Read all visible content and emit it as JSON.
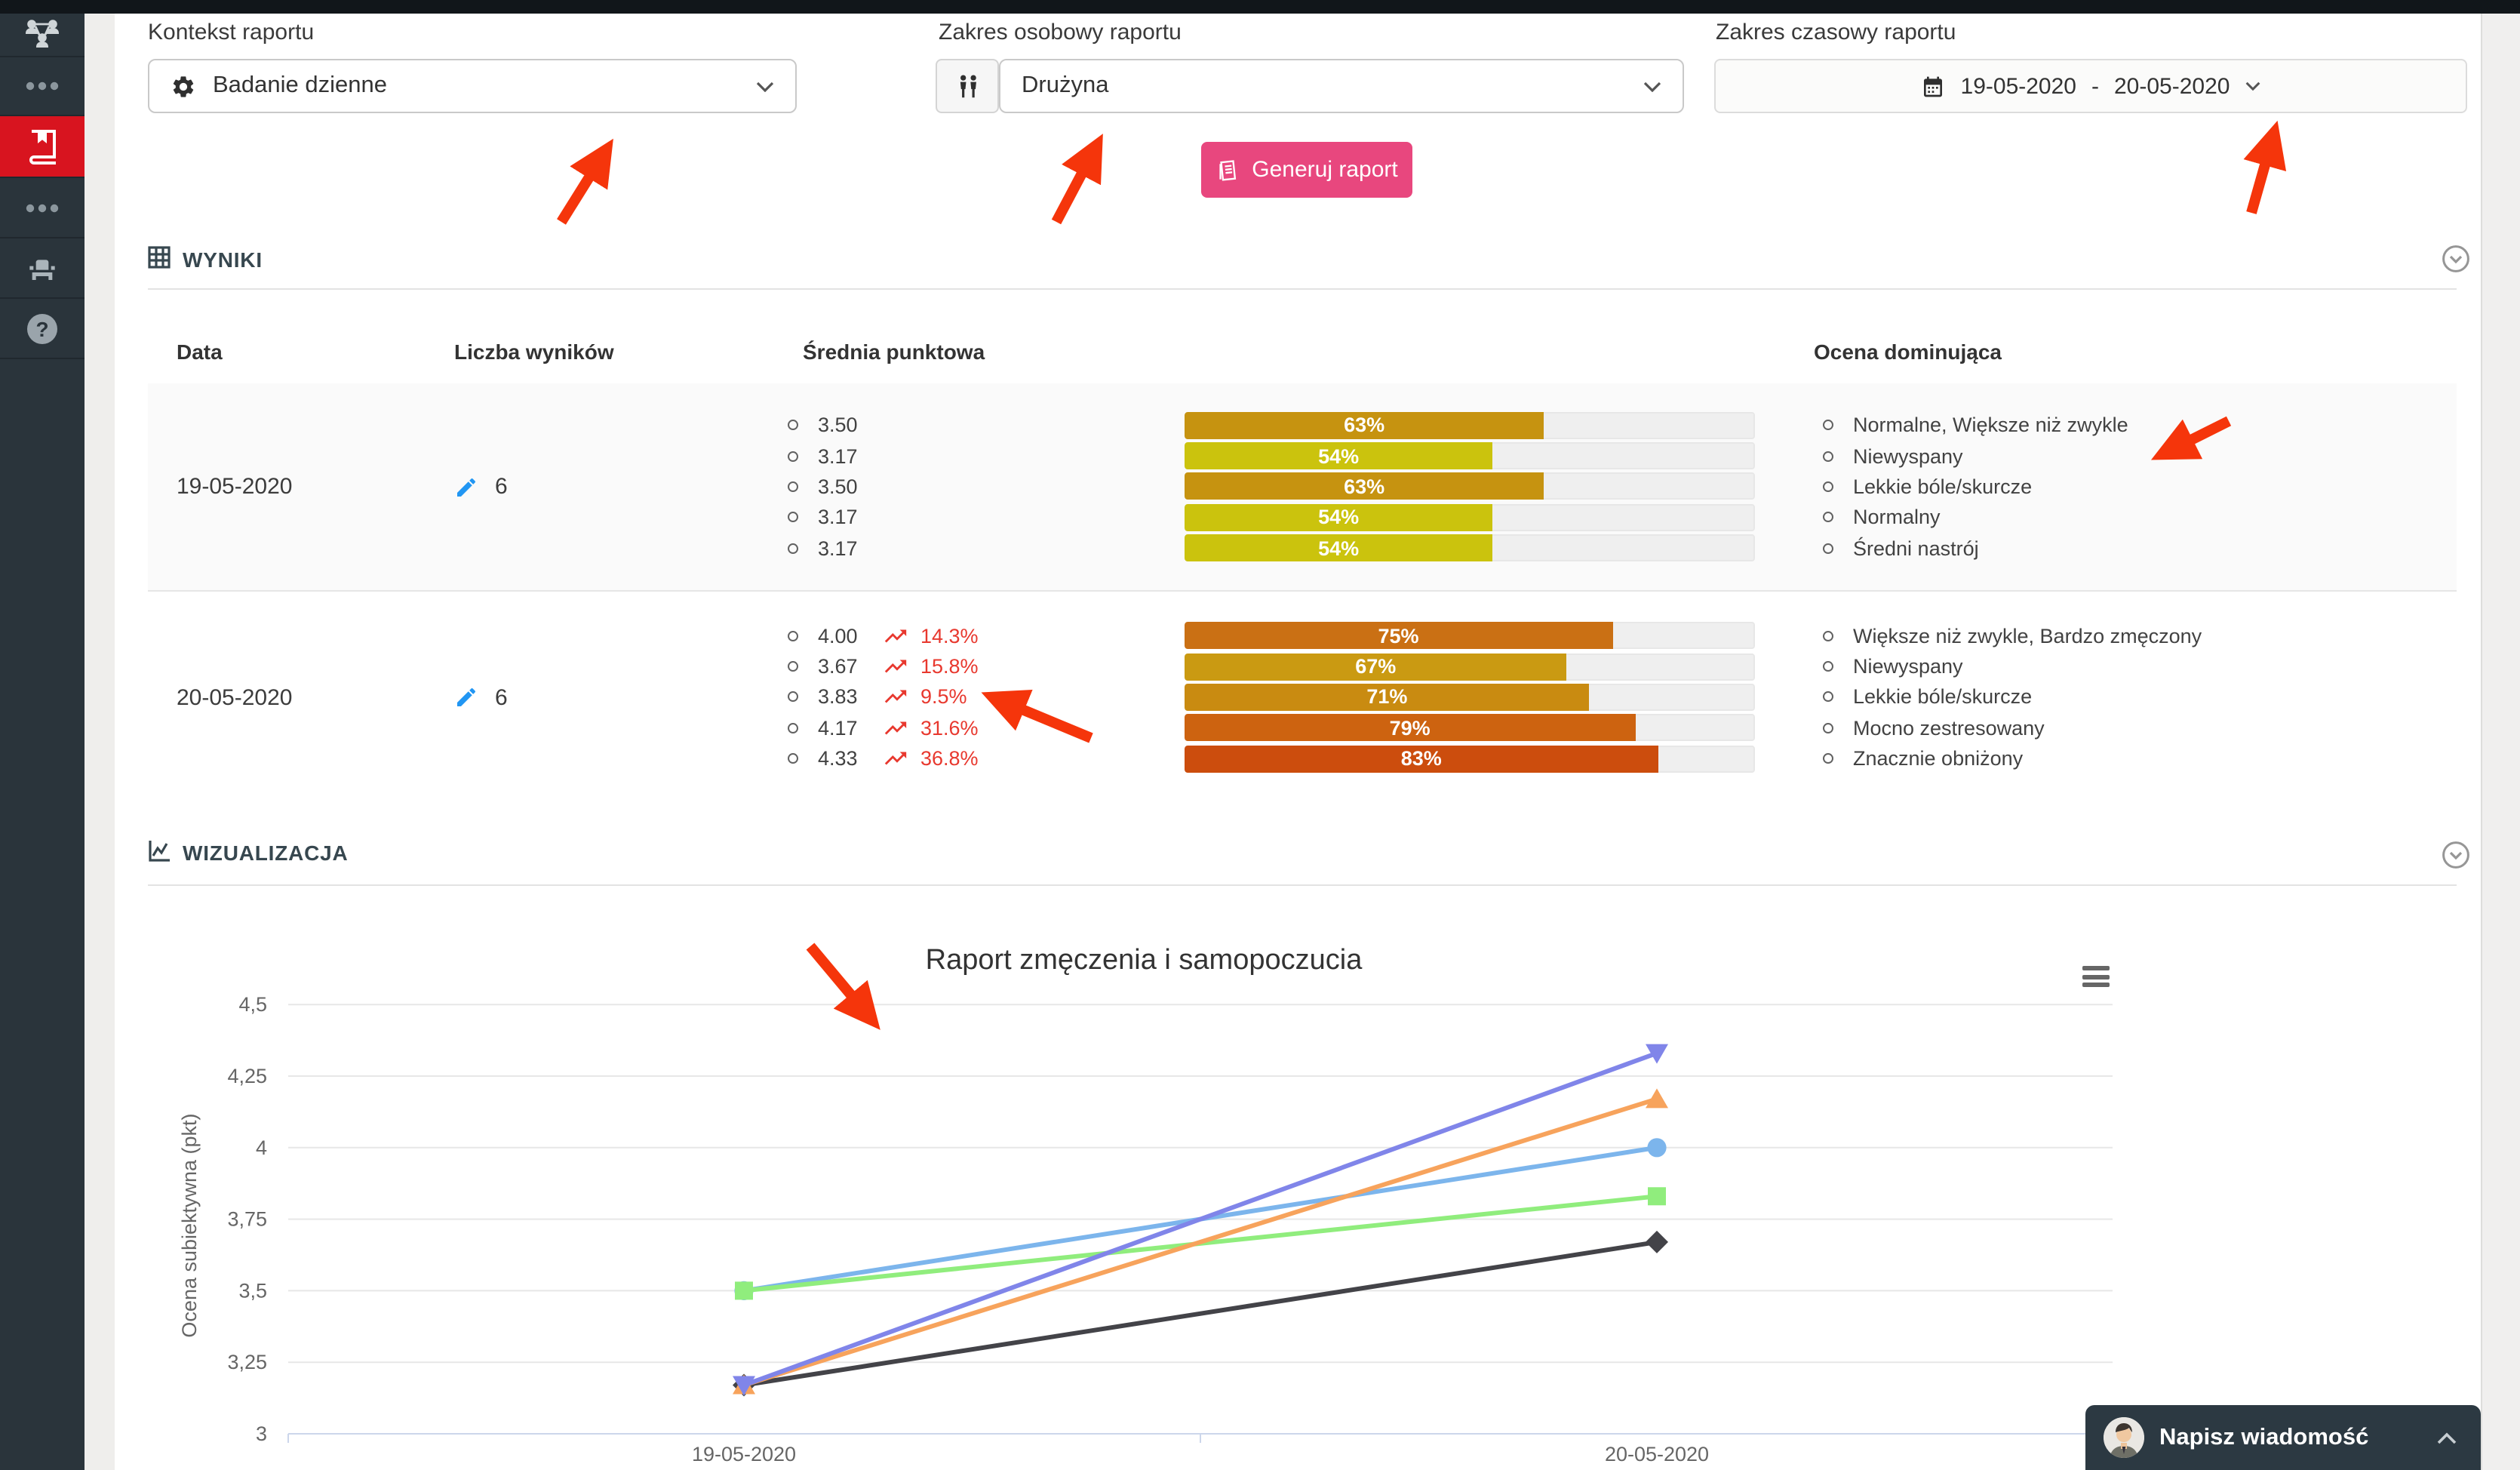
{
  "colors": {
    "primary_pink": "#e8477e",
    "sidebar_active_red": "#d8141f",
    "trend_red": "#e8382e",
    "pencil_blue": "#2196f3",
    "annotation_arrow_red": "#f5350b"
  },
  "sidebar": {
    "items": [
      {
        "icon": "org-chart-icon"
      },
      {
        "icon": "ellipsis-icon"
      },
      {
        "icon": "book-icon",
        "active": true
      },
      {
        "icon": "ellipsis-icon"
      },
      {
        "icon": "armchair-icon"
      },
      {
        "icon": "help-icon"
      }
    ]
  },
  "filters": {
    "context": {
      "label": "Kontekst raportu",
      "value": "Badanie dzienne",
      "icon": "gear-icon"
    },
    "personal": {
      "label": "Zakres osobowy raportu",
      "value": "Drużyna",
      "icon": "people-icon"
    },
    "time": {
      "label": "Zakres czasowy raportu",
      "from": "19-05-2020",
      "separator": "-",
      "to": "20-05-2020",
      "icon": "calendar-icon"
    }
  },
  "generate_button": {
    "label": "Generuj raport",
    "icon": "report-icon"
  },
  "results": {
    "section_title": "WYNIKI",
    "columns": [
      "Data",
      "Liczba wyników",
      "Średnia punktowa",
      "Ocena dominująca"
    ],
    "rows": [
      {
        "date": "19-05-2020",
        "count": "6",
        "scores": [
          {
            "value": "3.50"
          },
          {
            "value": "3.17"
          },
          {
            "value": "3.50"
          },
          {
            "value": "3.17"
          },
          {
            "value": "3.17"
          }
        ],
        "bars": [
          {
            "label": "63%",
            "percent": 63,
            "color": "#c69310"
          },
          {
            "label": "54%",
            "percent": 54,
            "color": "#cbc30d"
          },
          {
            "label": "63%",
            "percent": 63,
            "color": "#c69310"
          },
          {
            "label": "54%",
            "percent": 54,
            "color": "#cbc30d"
          },
          {
            "label": "54%",
            "percent": 54,
            "color": "#cbc30d"
          }
        ],
        "dominant": [
          "Normalne, Większe niż zwykle",
          "Niewyspany",
          "Lekkie bóle/skurcze",
          "Normalny",
          "Średni nastrój"
        ]
      },
      {
        "date": "20-05-2020",
        "count": "6",
        "scores": [
          {
            "value": "4.00",
            "trend": "14.3%"
          },
          {
            "value": "3.67",
            "trend": "15.8%"
          },
          {
            "value": "3.83",
            "trend": "9.5%"
          },
          {
            "value": "4.17",
            "trend": "31.6%"
          },
          {
            "value": "4.33",
            "trend": "36.8%"
          }
        ],
        "bars": [
          {
            "label": "75%",
            "percent": 75,
            "color": "#ca7014"
          },
          {
            "label": "67%",
            "percent": 67,
            "color": "#ca9a12"
          },
          {
            "label": "71%",
            "percent": 71,
            "color": "#c98b11"
          },
          {
            "label": "79%",
            "percent": 79,
            "color": "#cd6310"
          },
          {
            "label": "83%",
            "percent": 83,
            "color": "#cc4d0d"
          }
        ],
        "dominant": [
          "Większe niż zwykle, Bardzo zmęczony",
          "Niewyspany",
          "Lekkie bóle/skurcze",
          "Mocno zestresowany",
          "Znacznie obniżony"
        ]
      }
    ]
  },
  "visualization": {
    "section_title": "WIZUALIZACJA",
    "chart_data": {
      "type": "line",
      "title": "Raport zmęczenia i samopoczucia",
      "ylabel": "Ocena subiektywna (pkt)",
      "categories": [
        "19-05-2020",
        "20-05-2020"
      ],
      "ylim": [
        3,
        4.5
      ],
      "ytick_values": [
        4.5,
        4.25,
        4,
        3.75,
        3.5,
        3.25,
        3
      ],
      "ytick_labels": [
        "4,5",
        "4,25",
        "4",
        "3,75",
        "3,5",
        "3,25",
        "3"
      ],
      "grid": true,
      "legend_position": "none",
      "series": [
        {
          "marker": "circle",
          "color": "#7cb5ec",
          "values": [
            3.5,
            4.0
          ]
        },
        {
          "marker": "diamond",
          "color": "#434348",
          "values": [
            3.17,
            3.67
          ]
        },
        {
          "marker": "square",
          "color": "#90ed7d",
          "values": [
            3.5,
            3.83
          ]
        },
        {
          "marker": "triangle-up",
          "color": "#f7a35c",
          "values": [
            3.17,
            4.17
          ]
        },
        {
          "marker": "triangle-down",
          "color": "#8085e9",
          "values": [
            3.17,
            4.33
          ]
        }
      ]
    }
  },
  "chat": {
    "label": "Napisz wiadomość"
  }
}
